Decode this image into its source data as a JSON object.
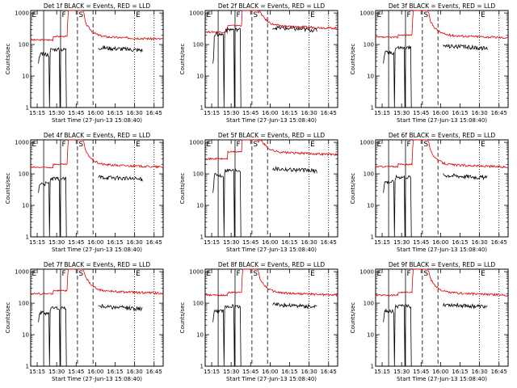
{
  "figure": {
    "xlabel": "Start Time (27-Jun-13 15:08:40)",
    "ylabel": "Counts/sec"
  },
  "chart_data": {
    "type": "line",
    "x_ticks": [
      "15:15",
      "15:30",
      "15:45",
      "16:00",
      "16:15",
      "16:30",
      "16:45"
    ],
    "y_ticks": [
      "1",
      "10",
      "100",
      "1000"
    ],
    "ylim": [
      1,
      1200
    ],
    "xlim_minutes": [
      0,
      102
    ],
    "y_scale": "log",
    "series_colors": {
      "events": "#000000",
      "lld": "#dd0000"
    },
    "markers": [
      {
        "label": "E",
        "style": "dotted",
        "t": "15:10"
      },
      {
        "label": "F",
        "style": "solid",
        "t": "15:33"
      },
      {
        "label": "S",
        "style": "dashed",
        "t": "15:46"
      },
      {
        "label": "E",
        "style": "dotted",
        "t": "16:30"
      }
    ],
    "vlines": [
      {
        "t": "15:20",
        "style": "solid"
      },
      {
        "t": "15:58",
        "style": "dashed"
      },
      {
        "t": "16:45",
        "style": "dotted"
      }
    ],
    "panels": [
      {
        "title": "Det 1f BLACK = Events, RED = LLD",
        "events_level": 70,
        "lld_level": 180,
        "lld_start_level": 140
      },
      {
        "title": "Det 2f BLACK = Events, RED = LLD",
        "events_level": 300,
        "lld_level": 400,
        "lld_start_level": 250
      },
      {
        "title": "Det 3f BLACK = Events, RED = LLD",
        "events_level": 80,
        "lld_level": 200,
        "lld_start_level": 170
      },
      {
        "title": "Det 4f BLACK = Events, RED = LLD",
        "events_level": 70,
        "lld_level": 200,
        "lld_start_level": 160
      },
      {
        "title": "Det 5f BLACK = Events, RED = LLD",
        "events_level": 130,
        "lld_level": 500,
        "lld_start_level": 300
      },
      {
        "title": "Det 6f BLACK = Events, RED = LLD",
        "events_level": 80,
        "lld_level": 200,
        "lld_start_level": 170
      },
      {
        "title": "Det 7f BLACK = Events, RED = LLD",
        "events_level": 70,
        "lld_level": 250,
        "lld_start_level": 200
      },
      {
        "title": "Det 8f BLACK = Events, RED = LLD",
        "events_level": 80,
        "lld_level": 220,
        "lld_start_level": 180
      },
      {
        "title": "Det 9f BLACK = Events, RED = LLD",
        "events_level": 80,
        "lld_level": 220,
        "lld_start_level": 180
      }
    ]
  }
}
